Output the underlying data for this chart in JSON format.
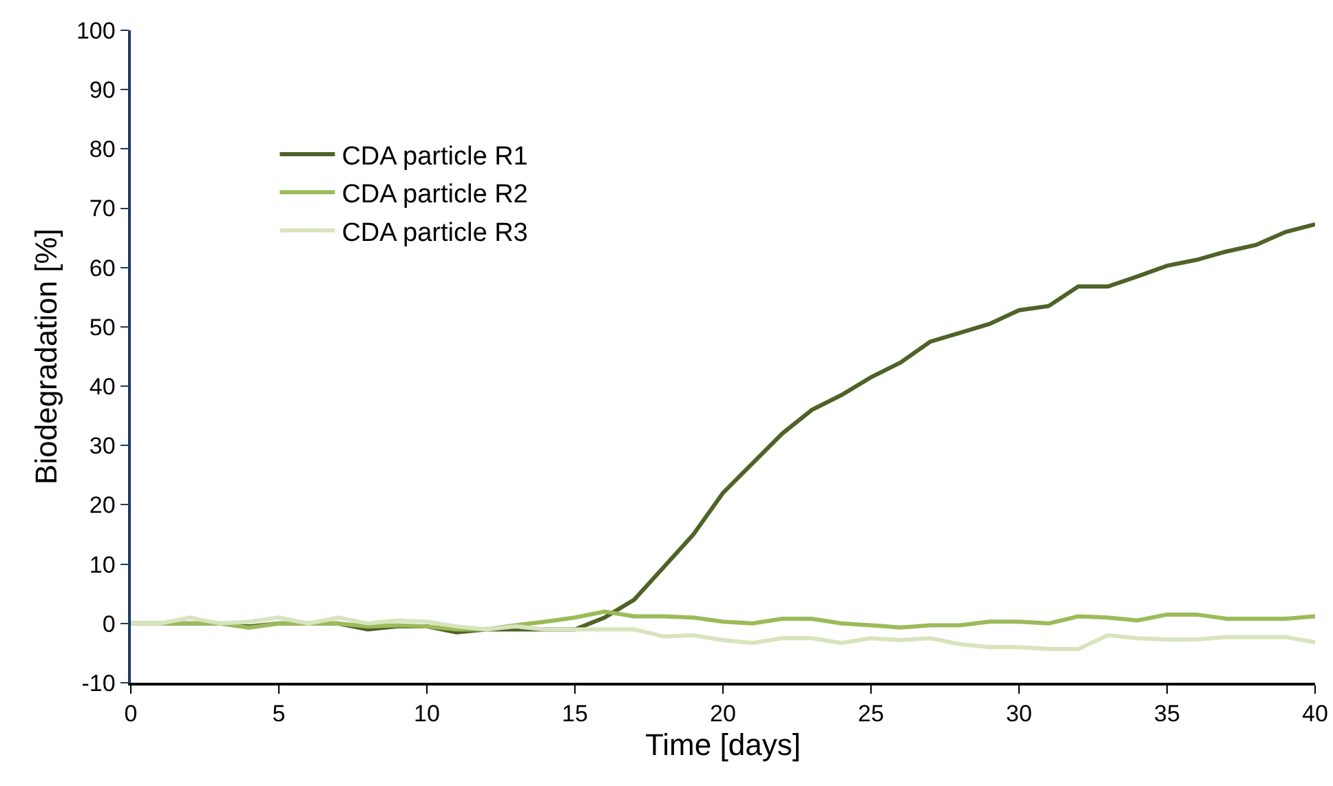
{
  "chart_data": {
    "type": "line",
    "xlabel": "Time [days]",
    "ylabel": "Biodegradation [%]",
    "x": [
      0,
      1,
      2,
      3,
      4,
      5,
      6,
      7,
      8,
      9,
      10,
      11,
      12,
      13,
      14,
      15,
      16,
      17,
      18,
      19,
      20,
      21,
      22,
      23,
      24,
      25,
      26,
      27,
      28,
      29,
      30,
      31,
      32,
      33,
      34,
      35,
      36,
      37,
      38,
      39,
      40
    ],
    "series": [
      {
        "name": "CDA particle R1",
        "color": "#4f6228",
        "values": [
          0,
          0,
          0,
          0,
          -0.5,
          0,
          0,
          0,
          -1,
          -0.5,
          -0.5,
          -1.5,
          -1,
          -1,
          -1,
          -1,
          1,
          4,
          9.5,
          15,
          22,
          27,
          32,
          36,
          38.5,
          41.5,
          44,
          47.5,
          49,
          50.5,
          52.8,
          53.5,
          56.8,
          56.8,
          58.5,
          60.3,
          61.3,
          62.7,
          63.8,
          66,
          67.3
        ]
      },
      {
        "name": "CDA particle R2",
        "color": "#9bbb59",
        "values": [
          0,
          0,
          0,
          0,
          -0.7,
          0,
          0,
          0,
          -0.5,
          -0.3,
          -0.5,
          -1,
          -1,
          -0.3,
          0.3,
          1,
          2,
          1.2,
          1.2,
          1,
          0.3,
          0,
          0.8,
          0.8,
          0,
          -0.3,
          -0.7,
          -0.3,
          -0.3,
          0.3,
          0.3,
          0,
          1.2,
          1,
          0.5,
          1.5,
          1.5,
          0.8,
          0.8,
          0.8,
          1.2
        ]
      },
      {
        "name": "CDA particle R3",
        "color": "#d7e4bd",
        "values": [
          0,
          0,
          1,
          0,
          0.3,
          1,
          0,
          1,
          0,
          0.5,
          0.3,
          -0.5,
          -1,
          -0.5,
          -1,
          -1,
          -1,
          -1,
          -2.2,
          -2,
          -2.8,
          -3.3,
          -2.5,
          -2.5,
          -3.3,
          -2.5,
          -2.8,
          -2.5,
          -3.5,
          -4,
          -4,
          -4.3,
          -4.3,
          -2,
          -2.5,
          -2.7,
          -2.7,
          -2.3,
          -2.3,
          -2.3,
          -3.2
        ]
      }
    ],
    "xlim": [
      0,
      40
    ],
    "xticks": [
      0,
      5,
      10,
      15,
      20,
      25,
      30,
      35,
      40
    ],
    "ylim": [
      -10,
      100
    ],
    "yticks": [
      -10,
      0,
      10,
      20,
      30,
      40,
      50,
      60,
      70,
      80,
      90,
      100
    ],
    "grid": false,
    "legend": "top left",
    "marker": "none",
    "line_style": "solid"
  }
}
